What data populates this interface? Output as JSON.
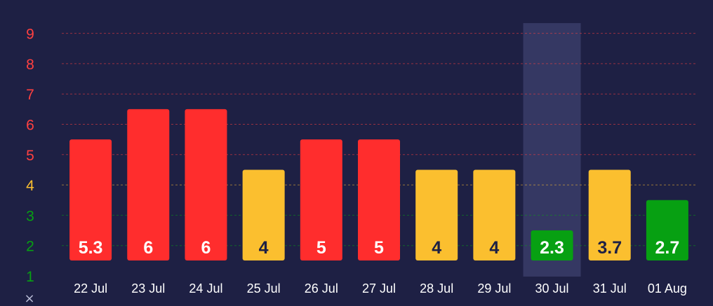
{
  "chart_data": {
    "type": "bar",
    "categories": [
      "22 Jul",
      "23 Jul",
      "24 Jul",
      "25 Jul",
      "26 Jul",
      "27 Jul",
      "28 Jul",
      "29 Jul",
      "30 Jul",
      "31 Jul",
      "01 Aug"
    ],
    "values": [
      5.3,
      6,
      6,
      4,
      5,
      5,
      4,
      4,
      2.3,
      3.7,
      2.7
    ],
    "value_labels": [
      "5.3",
      "6",
      "6",
      "4",
      "5",
      "5",
      "4",
      "4",
      "2.3",
      "3.7",
      "2.7"
    ],
    "bar_levels": [
      5,
      6,
      6,
      4,
      5,
      5,
      4,
      4,
      2,
      4,
      3
    ],
    "bar_colors": [
      "#ff2d2d",
      "#ff2d2d",
      "#ff2d2d",
      "#fbbf2f",
      "#ff2d2d",
      "#ff2d2d",
      "#fbbf2f",
      "#fbbf2f",
      "#07a012",
      "#fbbf2f",
      "#07a012"
    ],
    "label_colors": [
      "#ffffff",
      "#ffffff",
      "#ffffff",
      "#1e2044",
      "#ffffff",
      "#ffffff",
      "#1e2044",
      "#1e2044",
      "#ffffff",
      "#1e2044",
      "#ffffff"
    ],
    "y_ticks": [
      "1",
      "2",
      "3",
      "4",
      "5",
      "6",
      "7",
      "8",
      "9"
    ],
    "y_tick_colors": [
      "#07a012",
      "#07a012",
      "#07a012",
      "#fbbf2f",
      "#ff4040",
      "#ff4040",
      "#ff4040",
      "#ff4040",
      "#ff4040"
    ],
    "ylim": [
      1,
      9
    ],
    "highlighted_category": "30 Jul",
    "grid": true,
    "title": "",
    "xlabel": "",
    "ylabel": ""
  },
  "close_glyph": "×"
}
